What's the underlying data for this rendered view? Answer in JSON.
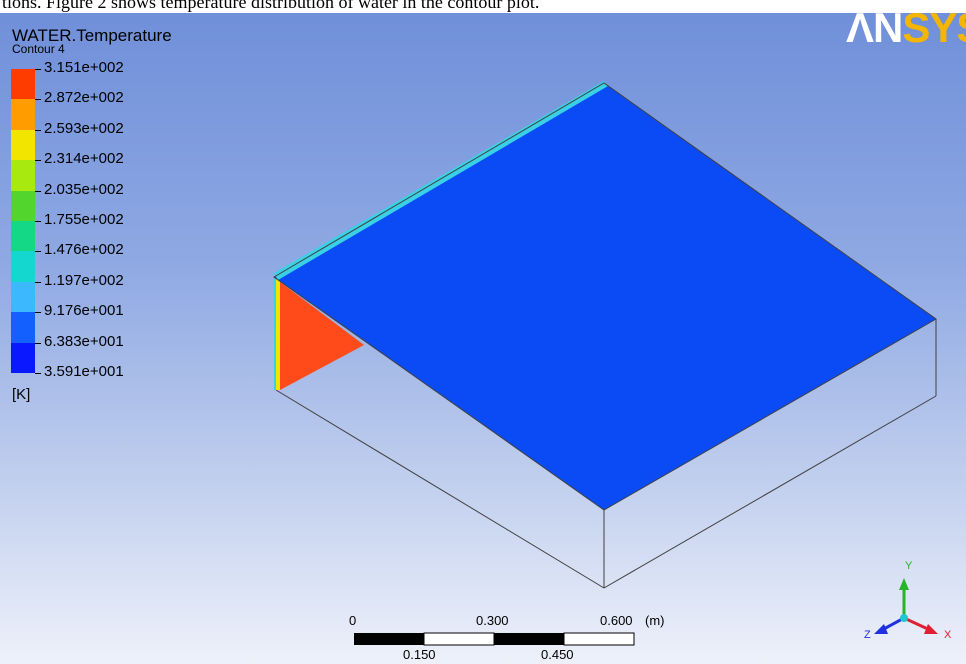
{
  "caption": "tions. Figure 2 shows temperature distribution of water in the contour plot.",
  "legend": {
    "title": "WATER.Temperature",
    "subtitle": "Contour 4",
    "unit": "[K]",
    "ticks": [
      "3.151e+002",
      "2.872e+002",
      "2.593e+002",
      "2.314e+002",
      "2.035e+002",
      "1.755e+002",
      "1.476e+002",
      "1.197e+002",
      "9.176e+001",
      "6.383e+001",
      "3.591e+001"
    ],
    "colors": [
      "#ff3c00",
      "#ff9c00",
      "#f2e600",
      "#a8ea10",
      "#52d62e",
      "#14d886",
      "#14d8d0",
      "#3cb8ff",
      "#1460ff",
      "#0a18ff"
    ]
  },
  "logo": {
    "part1": "ΛN",
    "part2": "SYS"
  },
  "scale": {
    "top_labels": [
      "0",
      "0.300",
      "0.600"
    ],
    "unit": "(m)",
    "bottom_labels": [
      "0.150",
      "0.450"
    ]
  },
  "triad": {
    "y": "Y",
    "x": "X",
    "z": "Z"
  },
  "colors": {
    "cold": "#0a4bf5",
    "hot": "#ff4a1a",
    "edge_cyan": "#3ad1e6",
    "edge_yellow": "#f2e600",
    "outline": "#404040",
    "axis_y": "#28b428",
    "axis_x": "#e02030",
    "axis_z": "#2030e0",
    "axis_origin": "#1ec8d0"
  }
}
